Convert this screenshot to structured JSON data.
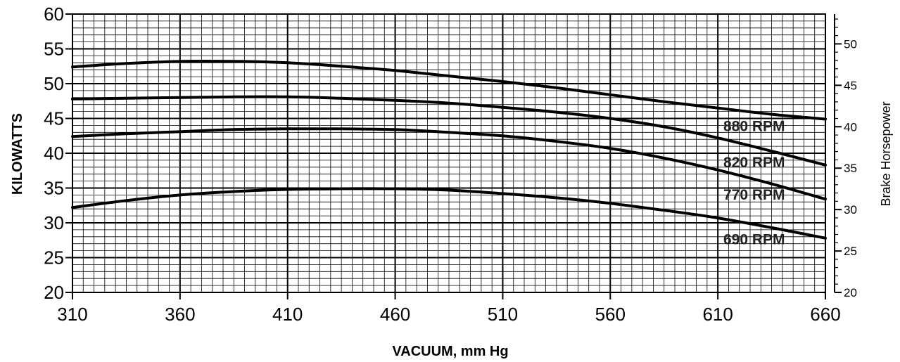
{
  "chart_data": {
    "type": "line",
    "xlabel": "VACUUM, mm Hg",
    "ylabel": "KILOWATTS",
    "y2label": "Brake Horsepower",
    "xlim": [
      310,
      660
    ],
    "ylim": [
      20,
      60
    ],
    "y2lim": [
      20,
      53.6
    ],
    "x_ticks": [
      310,
      360,
      410,
      460,
      510,
      560,
      610,
      660
    ],
    "y_ticks": [
      20,
      25,
      30,
      35,
      40,
      45,
      50,
      55,
      60
    ],
    "y2_ticks": [
      20,
      25,
      30,
      35,
      40,
      45,
      50
    ],
    "grid": true,
    "series": [
      {
        "name": "880 RPM",
        "x": [
          310,
          335,
          360,
          385,
          410,
          435,
          460,
          485,
          510,
          535,
          560,
          585,
          610,
          635,
          660
        ],
        "values": [
          52.4,
          52.9,
          53.2,
          53.2,
          53.0,
          52.5,
          51.9,
          51.1,
          50.3,
          49.4,
          48.4,
          47.4,
          46.5,
          45.6,
          44.9
        ]
      },
      {
        "name": "820 RPM",
        "x": [
          310,
          335,
          360,
          385,
          410,
          435,
          460,
          485,
          510,
          535,
          560,
          585,
          610,
          635,
          660
        ],
        "values": [
          47.8,
          47.9,
          48.0,
          48.1,
          48.1,
          47.9,
          47.6,
          47.2,
          46.6,
          45.9,
          45.0,
          43.8,
          42.2,
          40.3,
          38.3
        ]
      },
      {
        "name": "770 RPM",
        "x": [
          310,
          335,
          360,
          385,
          410,
          435,
          460,
          485,
          510,
          535,
          560,
          585,
          610,
          635,
          660
        ],
        "values": [
          42.4,
          42.8,
          43.1,
          43.4,
          43.5,
          43.5,
          43.4,
          43.0,
          42.5,
          41.7,
          40.7,
          39.3,
          37.6,
          35.6,
          33.4
        ]
      },
      {
        "name": "690 RPM",
        "x": [
          310,
          335,
          360,
          385,
          410,
          435,
          460,
          485,
          510,
          535,
          560,
          585,
          610,
          635,
          660
        ],
        "values": [
          32.2,
          33.2,
          34.0,
          34.5,
          34.8,
          34.9,
          34.9,
          34.7,
          34.2,
          33.6,
          32.8,
          31.8,
          30.7,
          29.3,
          27.8
        ]
      }
    ]
  }
}
